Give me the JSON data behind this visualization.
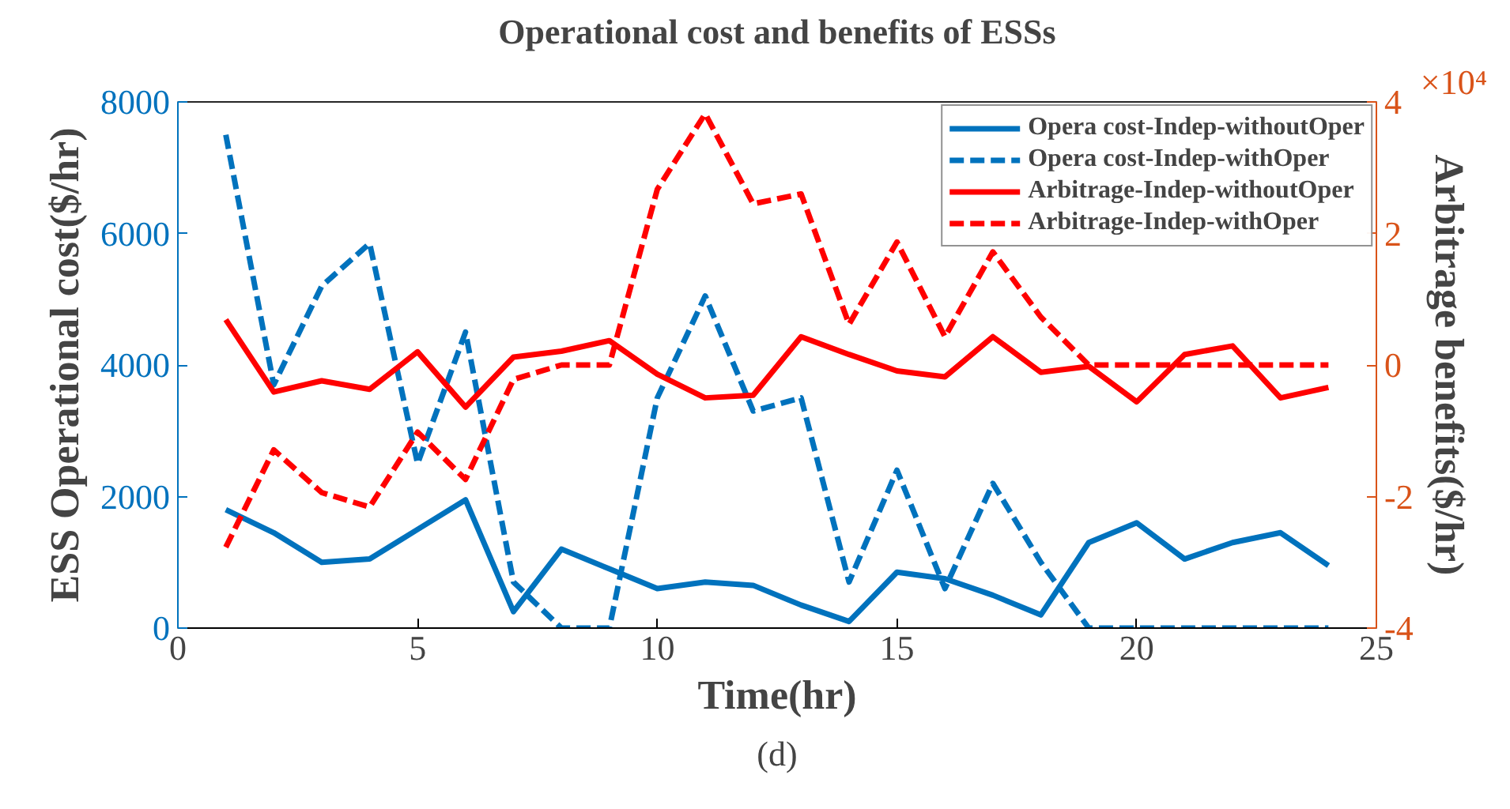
{
  "chart_data": {
    "type": "line",
    "title": "Operational cost and benefits of ESSs",
    "xlabel": "Time(hr)",
    "ylabel": "ESS Operational cost($/hr)",
    "y2label": "Arbitrage benefits($/hr)",
    "x": [
      1,
      2,
      3,
      4,
      5,
      6,
      7,
      8,
      9,
      10,
      11,
      12,
      13,
      14,
      15,
      16,
      17,
      18,
      19,
      20,
      21,
      22,
      23,
      24
    ],
    "series": [
      {
        "name": "Opera cost-Indep-withoutOper",
        "color": "#0072bd",
        "line_style": "solid",
        "values": [
          1800,
          1450,
          1000,
          1050,
          1500,
          1950,
          250,
          1200,
          900,
          600,
          700,
          650,
          350,
          100,
          850,
          750,
          500,
          200,
          1300,
          1600,
          1050,
          1300,
          1450,
          950
        ]
      },
      {
        "name": "Opera cost-Indep-withOper",
        "color": "#0072bd",
        "line_style": "dashed",
        "values": [
          7500,
          3700,
          5200,
          5850,
          2500,
          4500,
          700,
          0,
          0,
          3500,
          5050,
          3300,
          3500,
          700,
          2400,
          600,
          2200,
          1000,
          0,
          0,
          0,
          0,
          0,
          0
        ]
      },
      {
        "name": "Arbitrage-Indep-withoutOper",
        "color": "#ff0000",
        "line_style": "solid",
        "axis": "y2",
        "values": [
          0.69,
          -0.41,
          -0.24,
          -0.37,
          0.2,
          -0.64,
          0.12,
          0.21,
          0.37,
          -0.14,
          -0.5,
          -0.46,
          0.43,
          0.16,
          -0.09,
          -0.18,
          0.43,
          -0.11,
          -0.02,
          -0.56,
          0.16,
          0.29,
          -0.5,
          -0.34
        ]
      },
      {
        "name": "Arbitrage-Indep-withOper",
        "color": "#ff0000",
        "line_style": "dashed",
        "axis": "y2",
        "values": [
          -2.77,
          -1.29,
          -1.94,
          -2.16,
          -1.02,
          -1.74,
          -0.22,
          0,
          0,
          2.67,
          3.82,
          2.45,
          2.6,
          0.62,
          1.87,
          0.43,
          1.72,
          0.73,
          0,
          0,
          0,
          0,
          0,
          0
        ]
      }
    ],
    "xlim": [
      0,
      25
    ],
    "xticks": [
      0,
      5,
      10,
      15,
      20,
      25
    ],
    "ylim": [
      0,
      8000
    ],
    "yticks": [
      0,
      2000,
      4000,
      6000,
      8000
    ],
    "y2lim": [
      -4,
      4
    ],
    "y2ticks": [
      -4,
      -2,
      0,
      2,
      4
    ],
    "annotations": [
      "×10⁴",
      "(d)"
    ],
    "legend": "top right",
    "grid": false,
    "marker": "none"
  }
}
